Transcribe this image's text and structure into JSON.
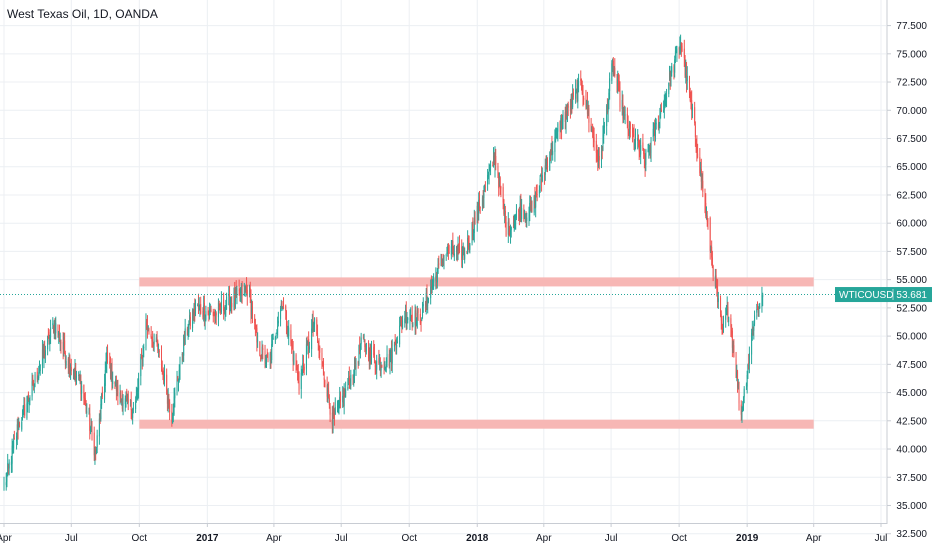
{
  "chart_data": {
    "type": "candlestick",
    "title": "West Texas Oil, 1D, OANDA",
    "symbol": "WTICOUSD",
    "last_price": 53.681,
    "last_price_label": "53.681",
    "colors": {
      "up": "#26a69a",
      "down": "#ef5350",
      "zone": "#f7b7b5",
      "grid": "#eceff3",
      "axis_text": "#131722",
      "price_line": "#26a69a"
    },
    "ylim": [
      31.5,
      79.5
    ],
    "y_ticks": [
      32.5,
      35.0,
      37.5,
      40.0,
      42.5,
      45.0,
      47.5,
      50.0,
      52.5,
      55.0,
      57.5,
      60.0,
      62.5,
      65.0,
      67.5,
      70.0,
      72.5,
      75.0,
      77.5
    ],
    "y_tick_labels": [
      "32.500",
      "35.000",
      "37.500",
      "40.000",
      "42.500",
      "45.000",
      "47.500",
      "50.000",
      "52.500",
      "55.000",
      "57.500",
      "60.000",
      "62.500",
      "65.000",
      "67.500",
      "70.000",
      "72.500",
      "75.000",
      "77.500"
    ],
    "x_range": [
      "2016-04-01",
      "2019-07-01"
    ],
    "x_ticks": [
      {
        "date": "2016-04-01",
        "label": "Apr",
        "bold": false
      },
      {
        "date": "2016-07-01",
        "label": "Jul",
        "bold": false
      },
      {
        "date": "2016-10-01",
        "label": "Oct",
        "bold": false
      },
      {
        "date": "2017-01-01",
        "label": "2017",
        "bold": true
      },
      {
        "date": "2017-04-01",
        "label": "Apr",
        "bold": false
      },
      {
        "date": "2017-07-01",
        "label": "Jul",
        "bold": false
      },
      {
        "date": "2017-10-01",
        "label": "Oct",
        "bold": false
      },
      {
        "date": "2018-01-01",
        "label": "2018",
        "bold": true
      },
      {
        "date": "2018-04-01",
        "label": "Apr",
        "bold": false
      },
      {
        "date": "2018-07-01",
        "label": "Jul",
        "bold": false
      },
      {
        "date": "2018-10-01",
        "label": "Oct",
        "bold": false
      },
      {
        "date": "2019-01-01",
        "label": "2019",
        "bold": true
      },
      {
        "date": "2019-04-01",
        "label": "Apr",
        "bold": false
      },
      {
        "date": "2019-07-01",
        "label": "Jul",
        "bold": false
      }
    ],
    "zones": [
      {
        "from_date": "2016-10-01",
        "to_date": "2019-04-01",
        "low": 54.4,
        "high": 55.2
      },
      {
        "from_date": "2016-10-01",
        "to_date": "2019-04-01",
        "low": 41.8,
        "high": 42.6
      }
    ],
    "price_path": [
      [
        "2016-04-01",
        36.5
      ],
      [
        "2016-04-20",
        42.0
      ],
      [
        "2016-05-10",
        45.5
      ],
      [
        "2016-06-08",
        51.2
      ],
      [
        "2016-06-25",
        48.0
      ],
      [
        "2016-07-15",
        45.5
      ],
      [
        "2016-08-03",
        39.6
      ],
      [
        "2016-08-18",
        48.0
      ],
      [
        "2016-09-05",
        44.5
      ],
      [
        "2016-09-25",
        43.5
      ],
      [
        "2016-10-10",
        51.0
      ],
      [
        "2016-10-25",
        49.0
      ],
      [
        "2016-11-14",
        43.0
      ],
      [
        "2016-11-30",
        49.5
      ],
      [
        "2016-12-15",
        52.5
      ],
      [
        "2017-01-10",
        52.0
      ],
      [
        "2017-02-05",
        53.2
      ],
      [
        "2017-02-25",
        54.3
      ],
      [
        "2017-03-10",
        49.0
      ],
      [
        "2017-03-25",
        47.5
      ],
      [
        "2017-04-12",
        53.2
      ],
      [
        "2017-05-05",
        45.8
      ],
      [
        "2017-05-25",
        51.2
      ],
      [
        "2017-06-20",
        42.5
      ],
      [
        "2017-07-10",
        45.5
      ],
      [
        "2017-07-30",
        49.5
      ],
      [
        "2017-08-20",
        47.5
      ],
      [
        "2017-09-05",
        48.0
      ],
      [
        "2017-09-25",
        52.0
      ],
      [
        "2017-10-15",
        51.5
      ],
      [
        "2017-11-01",
        54.5
      ],
      [
        "2017-11-20",
        57.5
      ],
      [
        "2017-12-15",
        57.3
      ],
      [
        "2018-01-25",
        66.0
      ],
      [
        "2018-02-10",
        59.2
      ],
      [
        "2018-02-28",
        61.2
      ],
      [
        "2018-03-15",
        61.0
      ],
      [
        "2018-04-01",
        64.5
      ],
      [
        "2018-04-20",
        68.3
      ],
      [
        "2018-05-22",
        72.3
      ],
      [
        "2018-06-15",
        65.2
      ],
      [
        "2018-07-03",
        74.0
      ],
      [
        "2018-07-20",
        69.0
      ],
      [
        "2018-08-16",
        65.5
      ],
      [
        "2018-09-05",
        69.5
      ],
      [
        "2018-10-03",
        76.2
      ],
      [
        "2018-10-25",
        67.0
      ],
      [
        "2018-11-15",
        56.5
      ],
      [
        "2018-11-28",
        50.3
      ],
      [
        "2018-12-07",
        52.5
      ],
      [
        "2018-12-24",
        43.0
      ],
      [
        "2019-01-10",
        51.5
      ],
      [
        "2019-01-22",
        53.7
      ]
    ]
  }
}
